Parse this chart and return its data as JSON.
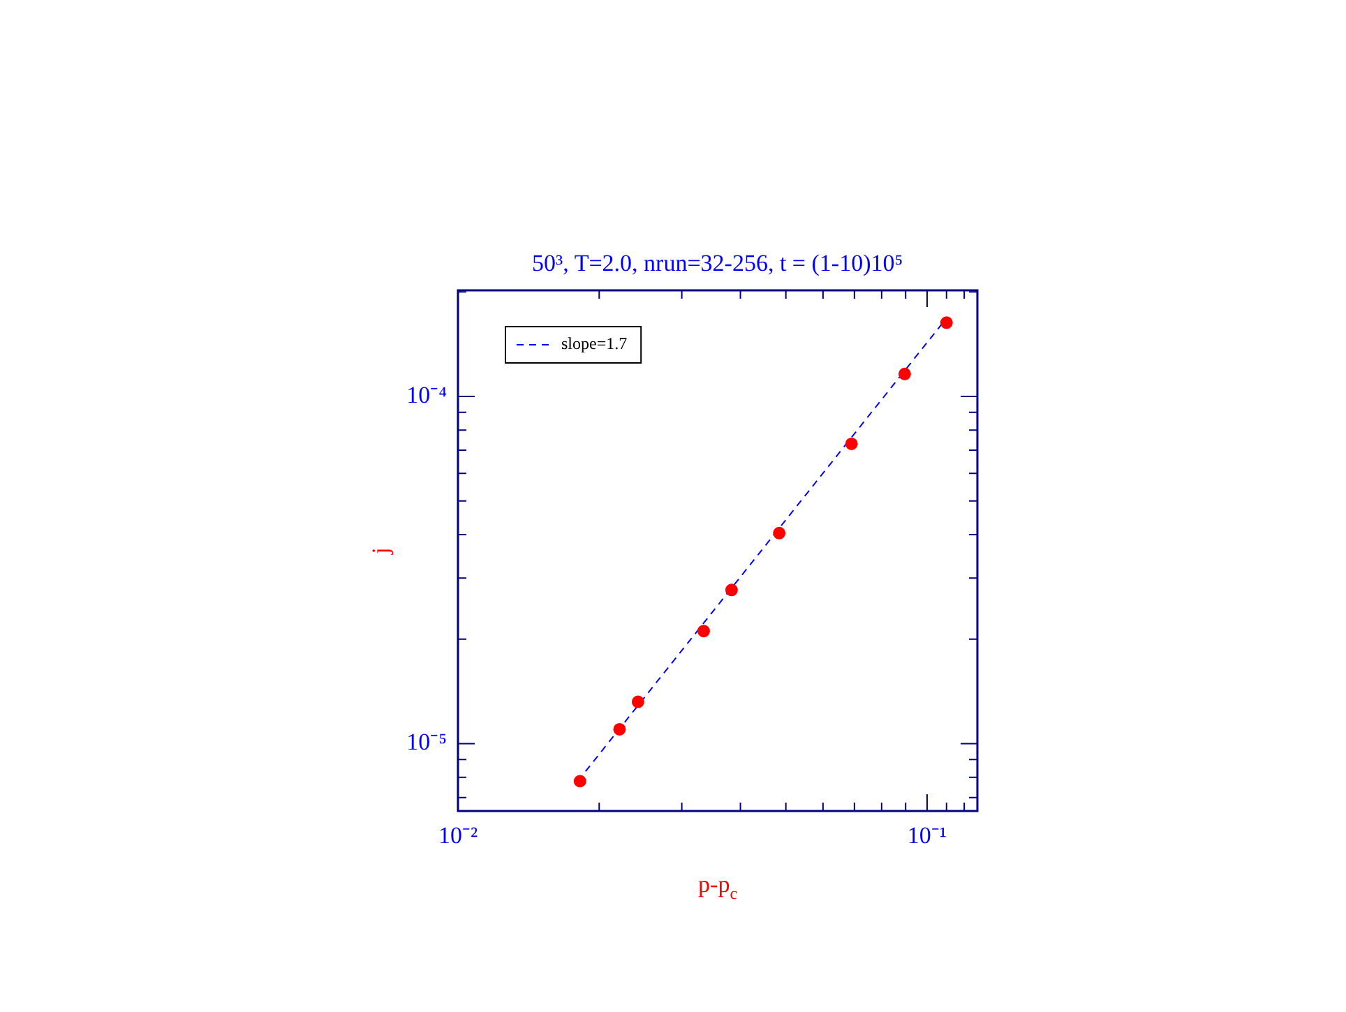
{
  "chart_data": {
    "type": "scatter",
    "title": "50³, T=2.0, nrun=32-256, t = (1-10)10⁵",
    "xlabel": "p-p$_{c}$",
    "ylabel": "j",
    "log": "xy",
    "xlim": [
      0.01,
      0.128
    ],
    "ylim": [
      6.4e-06,
      0.000202
    ],
    "xticks": [
      {
        "value": 0.01,
        "label": "10⁻²"
      },
      {
        "value": 0.02,
        "label": null
      },
      {
        "value": 0.03,
        "label": null
      },
      {
        "value": 0.04,
        "label": null
      },
      {
        "value": 0.05,
        "label": null
      },
      {
        "value": 0.06,
        "label": null
      },
      {
        "value": 0.07,
        "label": null
      },
      {
        "value": 0.08,
        "label": null
      },
      {
        "value": 0.09,
        "label": null
      },
      {
        "value": 0.1,
        "label": "10⁻¹"
      },
      {
        "value": 0.11,
        "label": null
      },
      {
        "value": 0.12,
        "label": null
      }
    ],
    "yticks": [
      {
        "value": 7e-06,
        "label": null
      },
      {
        "value": 8e-06,
        "label": null
      },
      {
        "value": 9e-06,
        "label": null
      },
      {
        "value": 1e-05,
        "label": "10⁻⁵"
      },
      {
        "value": 2e-05,
        "label": null
      },
      {
        "value": 3e-05,
        "label": null
      },
      {
        "value": 4e-05,
        "label": null
      },
      {
        "value": 5e-05,
        "label": null
      },
      {
        "value": 6e-05,
        "label": null
      },
      {
        "value": 7e-05,
        "label": null
      },
      {
        "value": 8e-05,
        "label": null
      },
      {
        "value": 9e-05,
        "label": null
      },
      {
        "value": 0.0001,
        "label": "10⁻⁴"
      },
      {
        "value": 0.0002,
        "label": null
      }
    ],
    "grid": false,
    "legend": "top left",
    "marker": "circle",
    "series": [
      {
        "color": "#ff0000",
        "x": [
          0.0182,
          0.0221,
          0.0242,
          0.0334,
          0.0383,
          0.0484,
          0.069,
          0.0896,
          0.11
        ],
        "values": [
          7.8e-06,
          1.1e-05,
          1.32e-05,
          2.11e-05,
          2.77e-05,
          4.04e-05,
          7.3e-05,
          0.000116,
          0.000163
        ]
      },
      {
        "type": "line",
        "name": "slope=1.7",
        "color": "#0000ff",
        "line_style": "dashed",
        "marker": "none",
        "x": [
          0.018,
          0.11
        ],
        "values": [
          7.8e-06,
          0.000168
        ]
      }
    ]
  }
}
